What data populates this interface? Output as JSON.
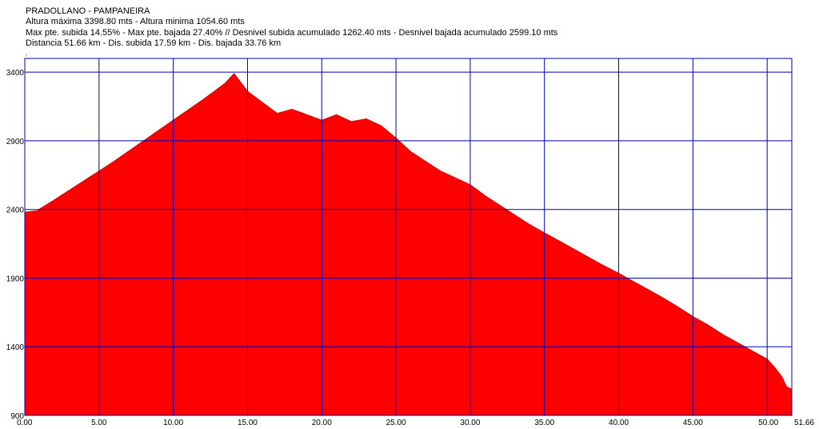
{
  "header": {
    "route_title": "PRADOLLANO - PAMPANEIRA",
    "line_altitude": "Altura máxima 3398.80 mts - Altura minima 1054.60 mts",
    "line_slopes": "Max pte. subida 14.55%  - Max pte. bajada 27.40% // Desnivel subida acumulado 1262.40 mts - Desnivel bajada acumulado 2599.10 mts",
    "line_distance": "Distancia 51.66 km  - Dis. subida 17.59 km - Dis. bajada 33.76 km",
    "dot": "."
  },
  "colors": {
    "fill": "#ff0000",
    "profile_edge": "#d80000",
    "grid": "#0000bb",
    "background": "#ffffff"
  },
  "chart_data": {
    "type": "area",
    "xlim": [
      0,
      51.66
    ],
    "ylim": [
      900,
      3500
    ],
    "grid": true,
    "x_ticks": [
      0,
      5,
      10,
      15,
      20,
      25,
      30,
      35,
      40,
      45,
      50,
      51.66
    ],
    "x_tick_labels": [
      "0.00",
      "5.00",
      "10.00",
      "15.00",
      "20.00",
      "25.00",
      "30.00",
      "35.00",
      "40.00",
      "45.00",
      "50.00",
      "51.66"
    ],
    "y_ticks": [
      900,
      1400,
      1900,
      2400,
      2900,
      3400
    ],
    "y_tick_labels": [
      "900",
      "1400",
      "1900",
      "2400",
      "2900",
      "3400"
    ],
    "series": [
      {
        "x": [
          0,
          0.8,
          2,
          4,
          6,
          8,
          10,
          12,
          13.5,
          14.1,
          15,
          16,
          17,
          18,
          19,
          20,
          21,
          22,
          23,
          24,
          25,
          26,
          27,
          28,
          29,
          30,
          31,
          32,
          33,
          34,
          35,
          36,
          37,
          38,
          39,
          40,
          41,
          42,
          43,
          44,
          45,
          46,
          47,
          48,
          49,
          50,
          50.5,
          51,
          51.3,
          51.66
        ],
        "y": [
          2380,
          2390,
          2470,
          2610,
          2750,
          2900,
          3050,
          3200,
          3320,
          3390,
          3260,
          3180,
          3100,
          3130,
          3090,
          3050,
          3090,
          3040,
          3060,
          3010,
          2920,
          2820,
          2750,
          2680,
          2630,
          2580,
          2500,
          2430,
          2360,
          2290,
          2230,
          2170,
          2110,
          2050,
          1990,
          1935,
          1875,
          1815,
          1755,
          1690,
          1620,
          1560,
          1490,
          1430,
          1370,
          1310,
          1250,
          1180,
          1110,
          1090
        ]
      }
    ]
  }
}
